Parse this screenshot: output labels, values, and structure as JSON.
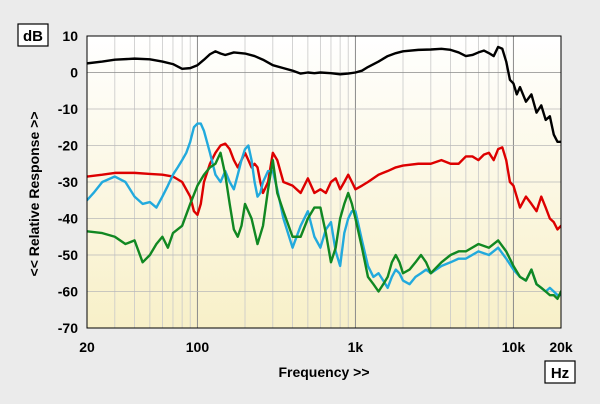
{
  "chart_data": {
    "type": "line",
    "x_scale": "log",
    "xlim": [
      20,
      20000
    ],
    "ylim": [
      -70,
      10
    ],
    "grid": true,
    "unit_y": "dB",
    "unit_x": "Hz",
    "xlabel": "Frequency >>",
    "ylabel": "<< Relative Response >>",
    "x_ticks": [
      {
        "value": 20,
        "label": "20"
      },
      {
        "value": 100,
        "label": "100"
      },
      {
        "value": 1000,
        "label": "1k"
      },
      {
        "value": 10000,
        "label": "10k"
      },
      {
        "value": 20000,
        "label": "20k"
      }
    ],
    "y_ticks": [
      10,
      0,
      -10,
      -20,
      -30,
      -40,
      -50,
      -60,
      -70
    ],
    "y_tick_labels": [
      "10",
      "0",
      "-10",
      "-20",
      "-30",
      "-40",
      "-50",
      "-60",
      "-70"
    ],
    "series": [
      {
        "color": "#000000",
        "points": [
          [
            20,
            2.5
          ],
          [
            25,
            3
          ],
          [
            30,
            3.5
          ],
          [
            40,
            3.8
          ],
          [
            50,
            3.6
          ],
          [
            60,
            3
          ],
          [
            70,
            2.3
          ],
          [
            80,
            1
          ],
          [
            90,
            1.2
          ],
          [
            100,
            2
          ],
          [
            110,
            3.5
          ],
          [
            120,
            5
          ],
          [
            130,
            5.8
          ],
          [
            140,
            5.2
          ],
          [
            150,
            4.8
          ],
          [
            170,
            5.5
          ],
          [
            200,
            5.2
          ],
          [
            230,
            4.5
          ],
          [
            260,
            3.5
          ],
          [
            300,
            2
          ],
          [
            350,
            1.2
          ],
          [
            400,
            0.5
          ],
          [
            450,
            -0.3
          ],
          [
            500,
            0
          ],
          [
            550,
            -0.2
          ],
          [
            600,
            0
          ],
          [
            700,
            -0.2
          ],
          [
            800,
            -0.5
          ],
          [
            900,
            -0.3
          ],
          [
            1000,
            0
          ],
          [
            1100,
            0.5
          ],
          [
            1200,
            1.5
          ],
          [
            1400,
            3
          ],
          [
            1600,
            4.5
          ],
          [
            1800,
            5.3
          ],
          [
            2000,
            5.8
          ],
          [
            2500,
            6.2
          ],
          [
            3000,
            6.3
          ],
          [
            3500,
            6.5
          ],
          [
            4000,
            6.2
          ],
          [
            4500,
            5.5
          ],
          [
            5000,
            4.5
          ],
          [
            5500,
            4.8
          ],
          [
            6000,
            5.5
          ],
          [
            6500,
            6
          ],
          [
            7000,
            5.3
          ],
          [
            7500,
            4.5
          ],
          [
            8000,
            7
          ],
          [
            8500,
            6.5
          ],
          [
            9000,
            3
          ],
          [
            9500,
            -2
          ],
          [
            10000,
            -3
          ],
          [
            10500,
            -6
          ],
          [
            11000,
            -4
          ],
          [
            12000,
            -8
          ],
          [
            13000,
            -6
          ],
          [
            14000,
            -11
          ],
          [
            15000,
            -9
          ],
          [
            16000,
            -13
          ],
          [
            17000,
            -12
          ],
          [
            18000,
            -17
          ],
          [
            19000,
            -19
          ],
          [
            20000,
            -19
          ]
        ]
      },
      {
        "color": "#dd0000",
        "points": [
          [
            20,
            -28.5
          ],
          [
            25,
            -28
          ],
          [
            30,
            -27.5
          ],
          [
            40,
            -27.5
          ],
          [
            50,
            -27.8
          ],
          [
            60,
            -28
          ],
          [
            70,
            -28.5
          ],
          [
            80,
            -30
          ],
          [
            90,
            -34
          ],
          [
            95,
            -38
          ],
          [
            100,
            -39
          ],
          [
            105,
            -36
          ],
          [
            110,
            -30
          ],
          [
            120,
            -25
          ],
          [
            130,
            -22
          ],
          [
            140,
            -20
          ],
          [
            150,
            -19.5
          ],
          [
            160,
            -21
          ],
          [
            170,
            -24
          ],
          [
            180,
            -26
          ],
          [
            190,
            -24
          ],
          [
            200,
            -22
          ],
          [
            210,
            -24
          ],
          [
            220,
            -26
          ],
          [
            230,
            -25
          ],
          [
            240,
            -26
          ],
          [
            250,
            -30
          ],
          [
            260,
            -33
          ],
          [
            280,
            -30
          ],
          [
            300,
            -22
          ],
          [
            320,
            -24
          ],
          [
            350,
            -30
          ],
          [
            400,
            -31
          ],
          [
            450,
            -33
          ],
          [
            500,
            -29
          ],
          [
            550,
            -33
          ],
          [
            600,
            -32
          ],
          [
            650,
            -33
          ],
          [
            700,
            -30
          ],
          [
            750,
            -29
          ],
          [
            800,
            -32
          ],
          [
            850,
            -30
          ],
          [
            900,
            -28
          ],
          [
            950,
            -30
          ],
          [
            1000,
            -32
          ],
          [
            1100,
            -31
          ],
          [
            1200,
            -30
          ],
          [
            1400,
            -28
          ],
          [
            1600,
            -27
          ],
          [
            1800,
            -26
          ],
          [
            2000,
            -25.5
          ],
          [
            2500,
            -25
          ],
          [
            3000,
            -25
          ],
          [
            3500,
            -24
          ],
          [
            4000,
            -25
          ],
          [
            4500,
            -25
          ],
          [
            5000,
            -23
          ],
          [
            5500,
            -23
          ],
          [
            6000,
            -24
          ],
          [
            6500,
            -22.5
          ],
          [
            7000,
            -22
          ],
          [
            7500,
            -24
          ],
          [
            8000,
            -21
          ],
          [
            8500,
            -20.5
          ],
          [
            9000,
            -24
          ],
          [
            9500,
            -30
          ],
          [
            10000,
            -31
          ],
          [
            11000,
            -37
          ],
          [
            12000,
            -34
          ],
          [
            13000,
            -36
          ],
          [
            14000,
            -38
          ],
          [
            15000,
            -34
          ],
          [
            16000,
            -37
          ],
          [
            17000,
            -40
          ],
          [
            18000,
            -41
          ],
          [
            19000,
            -43
          ],
          [
            20000,
            -42
          ]
        ]
      },
      {
        "color": "#22aadd",
        "points": [
          [
            20,
            -35
          ],
          [
            22,
            -33
          ],
          [
            25,
            -30
          ],
          [
            30,
            -28.5
          ],
          [
            35,
            -30
          ],
          [
            40,
            -34
          ],
          [
            45,
            -36
          ],
          [
            50,
            -35.5
          ],
          [
            55,
            -37
          ],
          [
            60,
            -34
          ],
          [
            65,
            -31
          ],
          [
            70,
            -28
          ],
          [
            75,
            -26
          ],
          [
            80,
            -24
          ],
          [
            85,
            -22
          ],
          [
            90,
            -19
          ],
          [
            95,
            -15
          ],
          [
            100,
            -14
          ],
          [
            105,
            -14
          ],
          [
            110,
            -16
          ],
          [
            120,
            -22
          ],
          [
            130,
            -28
          ],
          [
            140,
            -30
          ],
          [
            150,
            -27
          ],
          [
            160,
            -30
          ],
          [
            170,
            -32
          ],
          [
            180,
            -28
          ],
          [
            190,
            -24
          ],
          [
            200,
            -21
          ],
          [
            210,
            -20
          ],
          [
            220,
            -24
          ],
          [
            230,
            -30
          ],
          [
            240,
            -34
          ],
          [
            250,
            -33
          ],
          [
            260,
            -30
          ],
          [
            280,
            -27
          ],
          [
            300,
            -27
          ],
          [
            320,
            -32
          ],
          [
            350,
            -40
          ],
          [
            400,
            -48
          ],
          [
            450,
            -42
          ],
          [
            500,
            -38
          ],
          [
            550,
            -45
          ],
          [
            600,
            -48
          ],
          [
            650,
            -43
          ],
          [
            700,
            -41
          ],
          [
            750,
            -49
          ],
          [
            800,
            -53
          ],
          [
            850,
            -44
          ],
          [
            900,
            -40
          ],
          [
            950,
            -38
          ],
          [
            1000,
            -38
          ],
          [
            1100,
            -46
          ],
          [
            1200,
            -53
          ],
          [
            1300,
            -56
          ],
          [
            1400,
            -55
          ],
          [
            1500,
            -57
          ],
          [
            1600,
            -59
          ],
          [
            1700,
            -56
          ],
          [
            1800,
            -54
          ],
          [
            1900,
            -55
          ],
          [
            2000,
            -57
          ],
          [
            2200,
            -58
          ],
          [
            2400,
            -56
          ],
          [
            2600,
            -55
          ],
          [
            2800,
            -54
          ],
          [
            3000,
            -55
          ],
          [
            3500,
            -53
          ],
          [
            4000,
            -52
          ],
          [
            4500,
            -51
          ],
          [
            5000,
            -51
          ],
          [
            6000,
            -49
          ],
          [
            7000,
            -50
          ],
          [
            8000,
            -48
          ],
          [
            9000,
            -51
          ],
          [
            10000,
            -54
          ],
          [
            11000,
            -56
          ],
          [
            12000,
            -57
          ],
          [
            13000,
            -54
          ],
          [
            14000,
            -58
          ],
          [
            15000,
            -59
          ],
          [
            16000,
            -60
          ],
          [
            17000,
            -59
          ],
          [
            18000,
            -60
          ],
          [
            19000,
            -61
          ],
          [
            20000,
            -61
          ]
        ]
      },
      {
        "color": "#118822",
        "points": [
          [
            20,
            -43.5
          ],
          [
            25,
            -44
          ],
          [
            30,
            -45
          ],
          [
            35,
            -47
          ],
          [
            40,
            -46
          ],
          [
            45,
            -52
          ],
          [
            50,
            -50
          ],
          [
            55,
            -47
          ],
          [
            60,
            -45
          ],
          [
            65,
            -48
          ],
          [
            70,
            -44
          ],
          [
            80,
            -42
          ],
          [
            90,
            -36
          ],
          [
            100,
            -31
          ],
          [
            110,
            -28
          ],
          [
            120,
            -26
          ],
          [
            130,
            -25
          ],
          [
            140,
            -22
          ],
          [
            150,
            -28
          ],
          [
            160,
            -36
          ],
          [
            170,
            -43
          ],
          [
            180,
            -45
          ],
          [
            190,
            -42
          ],
          [
            200,
            -36
          ],
          [
            220,
            -40
          ],
          [
            240,
            -47
          ],
          [
            260,
            -42
          ],
          [
            280,
            -32
          ],
          [
            300,
            -24
          ],
          [
            320,
            -33
          ],
          [
            350,
            -38
          ],
          [
            400,
            -45
          ],
          [
            450,
            -45
          ],
          [
            500,
            -40
          ],
          [
            550,
            -37
          ],
          [
            600,
            -37
          ],
          [
            650,
            -44
          ],
          [
            700,
            -52
          ],
          [
            750,
            -48
          ],
          [
            800,
            -40
          ],
          [
            850,
            -36
          ],
          [
            900,
            -33
          ],
          [
            950,
            -36
          ],
          [
            1000,
            -40
          ],
          [
            1100,
            -48
          ],
          [
            1200,
            -56
          ],
          [
            1300,
            -58
          ],
          [
            1400,
            -60
          ],
          [
            1500,
            -58
          ],
          [
            1600,
            -56
          ],
          [
            1700,
            -52
          ],
          [
            1800,
            -50
          ],
          [
            1900,
            -52
          ],
          [
            2000,
            -55
          ],
          [
            2200,
            -54
          ],
          [
            2400,
            -52
          ],
          [
            2600,
            -50
          ],
          [
            2800,
            -52
          ],
          [
            3000,
            -55
          ],
          [
            3500,
            -52
          ],
          [
            4000,
            -50
          ],
          [
            4500,
            -49
          ],
          [
            5000,
            -49
          ],
          [
            6000,
            -47
          ],
          [
            7000,
            -48
          ],
          [
            8000,
            -46
          ],
          [
            9000,
            -49
          ],
          [
            10000,
            -53
          ],
          [
            11000,
            -56
          ],
          [
            12000,
            -57
          ],
          [
            13000,
            -54
          ],
          [
            14000,
            -58
          ],
          [
            15000,
            -59
          ],
          [
            16000,
            -60
          ],
          [
            17000,
            -61
          ],
          [
            18000,
            -61
          ],
          [
            19000,
            -62
          ],
          [
            20000,
            -60
          ]
        ]
      }
    ]
  }
}
